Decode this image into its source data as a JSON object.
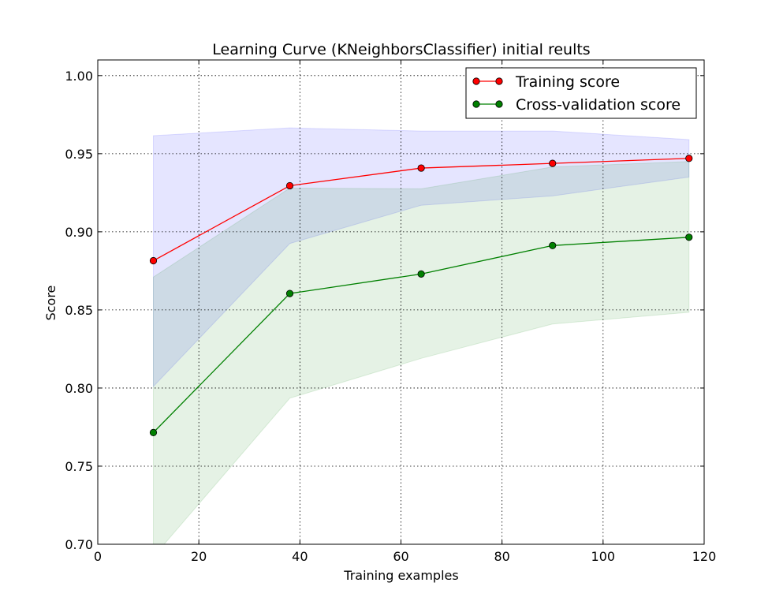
{
  "chart_data": {
    "type": "line",
    "title": "Learning Curve (KNeighborsClassifier) initial reults",
    "xlabel": "Training examples",
    "ylabel": "Score",
    "xlim": [
      0,
      120
    ],
    "ylim": [
      0.7,
      1.01
    ],
    "xticks": [
      "0",
      "20",
      "40",
      "60",
      "80",
      "100",
      "120"
    ],
    "xtick_values": [
      0,
      20,
      40,
      60,
      80,
      100,
      120
    ],
    "yticks": [
      "0.70",
      "0.75",
      "0.80",
      "0.85",
      "0.90",
      "0.95",
      "1.00"
    ],
    "ytick_values": [
      0.7,
      0.75,
      0.8,
      0.85,
      0.9,
      0.95,
      1.0
    ],
    "grid": true,
    "legend_position": "top-right",
    "x": [
      11,
      38,
      64,
      90,
      117
    ],
    "series": [
      {
        "name": "Training score",
        "color": "#ff0000",
        "values": [
          0.8815,
          0.9295,
          0.9408,
          0.9438,
          0.947
        ],
        "band_lower": [
          0.801,
          0.8925,
          0.917,
          0.923,
          0.935
        ],
        "band_upper": [
          0.9615,
          0.9665,
          0.9645,
          0.9645,
          0.959
        ],
        "band_color": "#0000ff"
      },
      {
        "name": "Cross-validation score",
        "color": "#008000",
        "values": [
          0.7715,
          0.8605,
          0.873,
          0.8912,
          0.8965
        ],
        "band_lower": [
          0.692,
          0.7935,
          0.819,
          0.841,
          0.8485
        ],
        "band_upper": [
          0.871,
          0.928,
          0.9275,
          0.9415,
          0.945
        ],
        "band_color": "#008000"
      }
    ]
  }
}
